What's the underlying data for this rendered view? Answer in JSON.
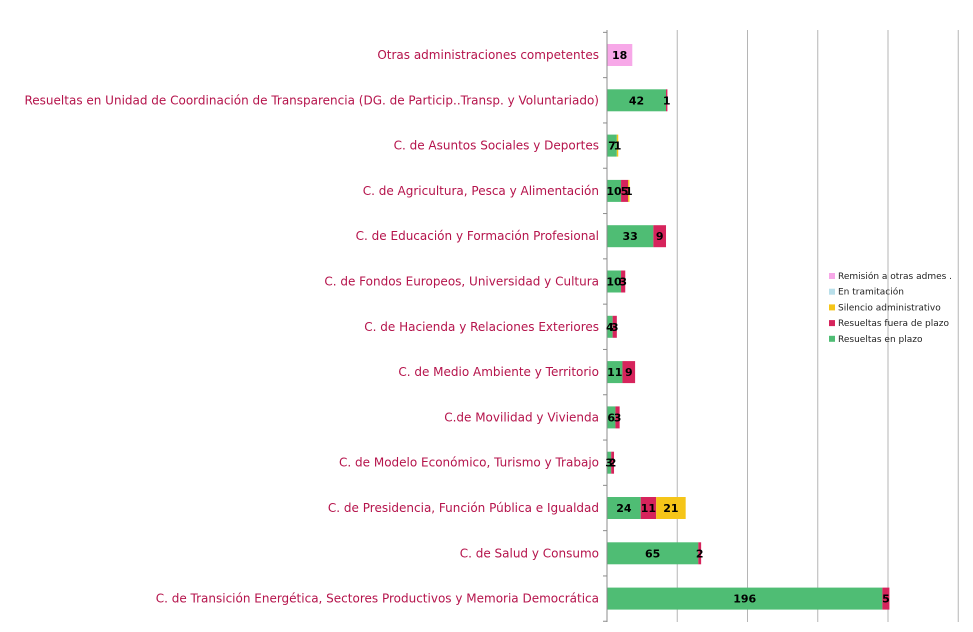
{
  "chart_data": {
    "type": "bar",
    "orientation": "horizontal",
    "stacked": true,
    "categories": [
      "Otras administraciones competentes",
      "Resueltas en Unidad de Coordinación de Transparencia (DG. de  Particip..Transp. y Voluntariado)",
      "C. de Asuntos Sociales y Deportes",
      "C. de Agricultura, Pesca y Alimentación",
      "C. de Educación y Formación Profesional",
      "C. de Fondos Europeos, Universidad y Cultura",
      "C. de Hacienda y Relaciones Exteriores",
      "C. de Medio Ambiente y Territorio",
      "C.de Movilidad y Vivienda",
      "C. de Modelo Económico, Turismo y Trabajo",
      "C. de Presidencia, Función Pública e Igualdad",
      "C. de Salud y Consumo",
      "C. de Transición Energética, Sectores Productivos y Memoria Democrática"
    ],
    "series": [
      {
        "name": "Resueltas  en plazo",
        "color": "#4fbd74",
        "values": [
          0,
          42,
          7,
          10,
          33,
          10,
          4,
          11,
          6,
          3,
          24,
          65,
          196
        ]
      },
      {
        "name": "Resueltas  fuera de plazo",
        "color": "#d6245c",
        "values": [
          0,
          1,
          0,
          5,
          9,
          3,
          3,
          9,
          3,
          2,
          11,
          2,
          5
        ]
      },
      {
        "name": "Silencio administrativo",
        "color": "#f5c518",
        "values": [
          0,
          0,
          1,
          1,
          0,
          0,
          0,
          0,
          0,
          0,
          21,
          0,
          0
        ]
      },
      {
        "name": "En tramitación",
        "color": "#b9dfea",
        "values": [
          0,
          0,
          0,
          0,
          0,
          0,
          0,
          0,
          0,
          0,
          0,
          0,
          0
        ]
      },
      {
        "name": "Remisión a otras  admes .",
        "color": "#f7a8e8",
        "values": [
          18,
          0,
          0,
          0,
          0,
          0,
          0,
          0,
          0,
          0,
          0,
          0,
          0
        ]
      }
    ],
    "value_labels": [
      [
        "18"
      ],
      [
        "42",
        "1"
      ],
      [
        "7",
        "1"
      ],
      [
        "10",
        "5",
        "1"
      ],
      [
        "33",
        "9"
      ],
      [
        "10",
        "3"
      ],
      [
        "4",
        "3"
      ],
      [
        "11",
        "9"
      ],
      [
        "6",
        "3"
      ],
      [
        "3",
        "2"
      ],
      [
        "24",
        "11",
        "21"
      ],
      [
        "65",
        "2"
      ],
      [
        "196",
        "5"
      ]
    ],
    "xlim": [
      0,
      250
    ],
    "grid": true,
    "legend_position": "right",
    "legend_order": [
      "Remisión a otras  admes .",
      "En tramitación",
      "Silencio administrativo",
      "Resueltas  fuera de plazo",
      "Resueltas  en plazo"
    ]
  }
}
